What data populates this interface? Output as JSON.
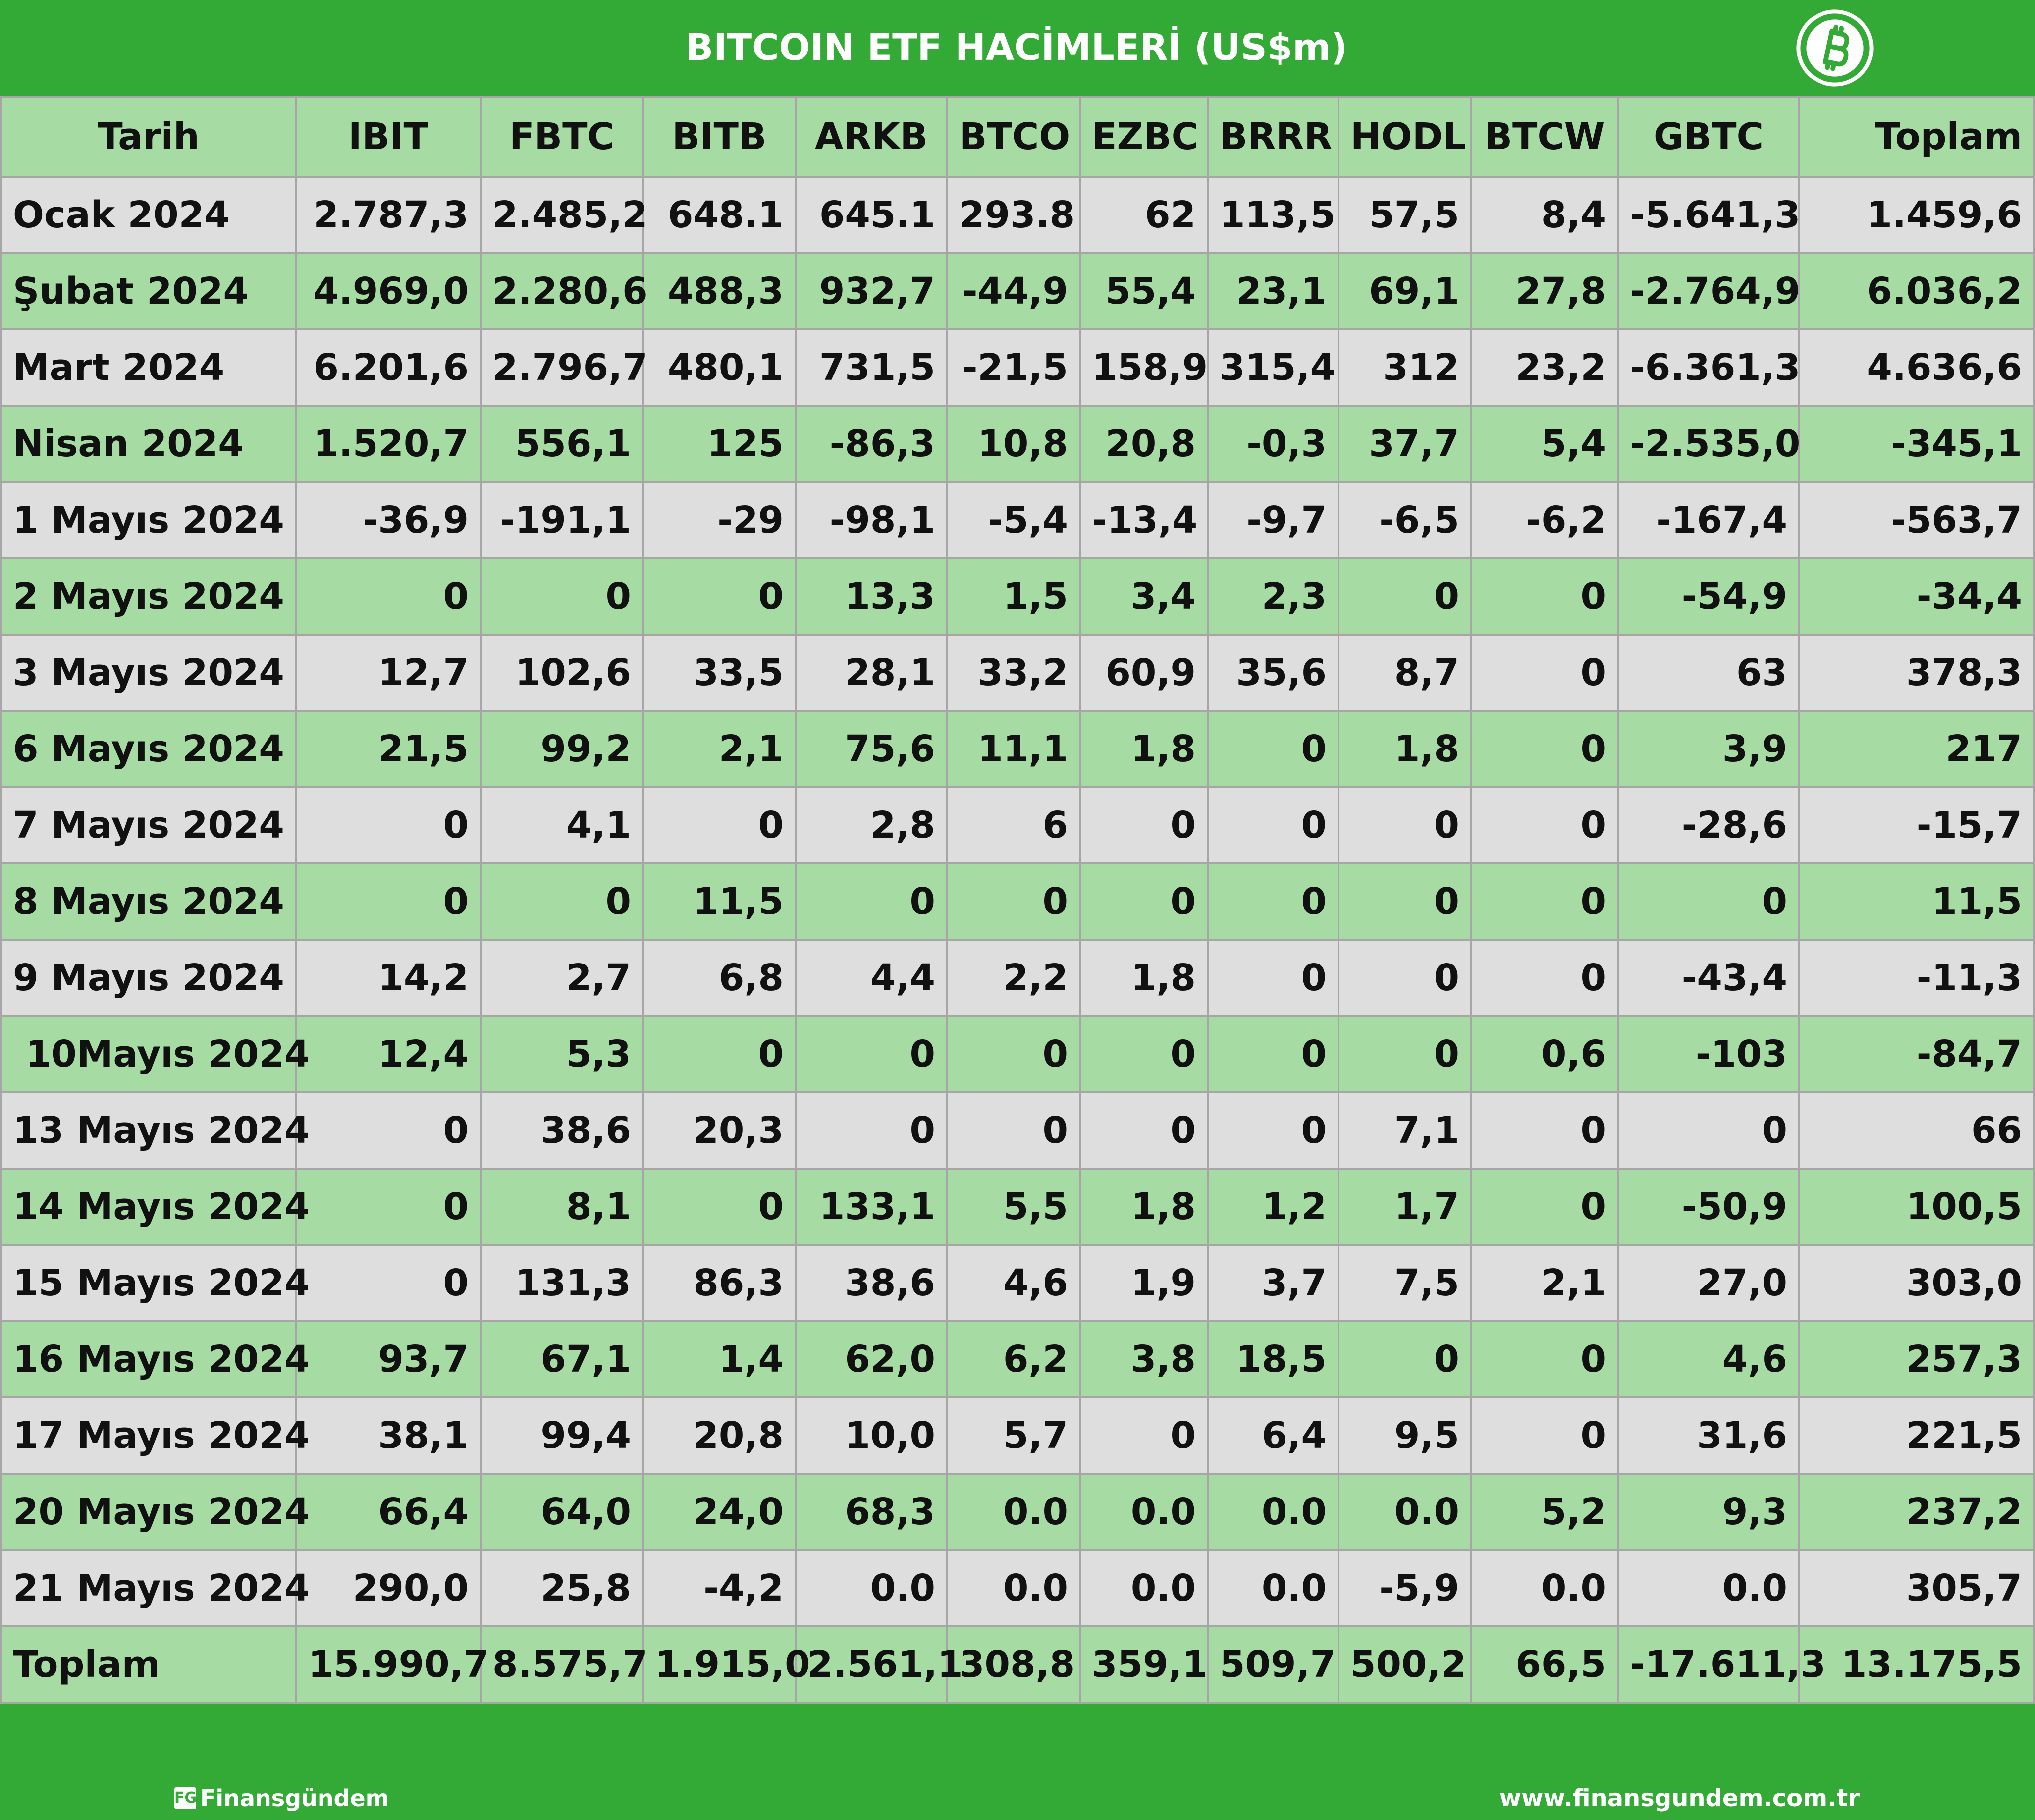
{
  "title": "BITCOIN ETF HACİMLERİ (US$m)",
  "logo_icon": "bitcoin-icon",
  "colors": {
    "header_green": "#33aa36",
    "row_green": "#a6dba3",
    "row_gray": "#dedede",
    "border_gray": "#a6a6a6"
  },
  "table": {
    "headers": [
      "Tarih",
      "IBIT",
      "FBTC",
      "BITB",
      "ARKB",
      "BTCO",
      "EZBC",
      "BRRR",
      "HODL",
      "BTCW",
      "GBTC",
      "Toplam"
    ],
    "rows": [
      [
        "Ocak 2024",
        "2.787,3",
        "2.485,2",
        "648.1",
        "645.1",
        "293.8",
        "62",
        "113,5",
        "57,5",
        "8,4",
        "-5.641,3",
        "1.459,6"
      ],
      [
        "Şubat 2024",
        "4.969,0",
        "2.280,6",
        "488,3",
        "932,7",
        "-44,9",
        "55,4",
        "23,1",
        "69,1",
        "27,8",
        "-2.764,9",
        "6.036,2"
      ],
      [
        "Mart 2024",
        "6.201,6",
        "2.796,7",
        "480,1",
        "731,5",
        "-21,5",
        "158,9",
        "315,4",
        "312",
        "23,2",
        "-6.361,3",
        "4.636,6"
      ],
      [
        "Nisan 2024",
        "1.520,7",
        "556,1",
        "125",
        "-86,3",
        "10,8",
        "20,8",
        "-0,3",
        "37,7",
        "5,4",
        "-2.535,0",
        "-345,1"
      ],
      [
        "1 Mayıs 2024",
        "-36,9",
        "-191,1",
        "-29",
        "-98,1",
        "-5,4",
        "-13,4",
        "-9,7",
        "-6,5",
        "-6,2",
        "-167,4",
        "-563,7"
      ],
      [
        "2 Mayıs 2024",
        "0",
        "0",
        "0",
        "13,3",
        "1,5",
        "3,4",
        "2,3",
        "0",
        "0",
        "-54,9",
        "-34,4"
      ],
      [
        "3 Mayıs 2024",
        "12,7",
        "102,6",
        "33,5",
        "28,1",
        "33,2",
        "60,9",
        "35,6",
        "8,7",
        "0",
        "63",
        "378,3"
      ],
      [
        "6 Mayıs 2024",
        "21,5",
        "99,2",
        "2,1",
        "75,6",
        "11,1",
        "1,8",
        "0",
        "1,8",
        "0",
        "3,9",
        "217"
      ],
      [
        "7 Mayıs 2024",
        "0",
        "4,1",
        "0",
        "2,8",
        "6",
        "0",
        "0",
        "0",
        "0",
        "-28,6",
        "-15,7"
      ],
      [
        "8 Mayıs 2024",
        "0",
        "0",
        "11,5",
        "0",
        "0",
        "0",
        "0",
        "0",
        "0",
        "0",
        "11,5"
      ],
      [
        "9 Mayıs 2024",
        "14,2",
        "2,7",
        "6,8",
        "4,4",
        "2,2",
        "1,8",
        "0",
        "0",
        "0",
        "-43,4",
        "-11,3"
      ],
      [
        " 10Mayıs 2024",
        "12,4",
        "5,3",
        "0",
        "0",
        "0",
        "0",
        "0",
        "0",
        "0,6",
        "-103",
        "-84,7"
      ],
      [
        "13 Mayıs 2024",
        "0",
        "38,6",
        "20,3",
        "0",
        "0",
        "0",
        "0",
        "7,1",
        "0",
        "0",
        "66"
      ],
      [
        "14 Mayıs 2024",
        "0",
        "8,1",
        "0",
        "133,1",
        "5,5",
        "1,8",
        "1,2",
        "1,7",
        "0",
        "-50,9",
        "100,5"
      ],
      [
        "15 Mayıs 2024",
        "0",
        "131,3",
        "86,3",
        "38,6",
        "4,6",
        "1,9",
        "3,7",
        "7,5",
        "2,1",
        "27,0",
        "303,0"
      ],
      [
        "16 Mayıs 2024",
        "93,7",
        "67,1",
        "1,4",
        "62,0",
        "6,2",
        "3,8",
        "18,5",
        "0",
        "0",
        "4,6",
        "257,3"
      ],
      [
        "17 Mayıs 2024",
        "38,1",
        "99,4",
        "20,8",
        "10,0",
        "5,7",
        "0",
        "6,4",
        "9,5",
        "0",
        "31,6",
        "221,5"
      ],
      [
        "20 Mayıs 2024",
        "66,4",
        "64,0",
        "24,0",
        "68,3",
        "0.0",
        "0.0",
        "0.0",
        "0.0",
        "5,2",
        "9,3",
        "237,2"
      ],
      [
        "21 Mayıs 2024",
        "290,0",
        "25,8",
        "-4,2",
        "0.0",
        "0.0",
        "0.0",
        "0.0",
        "-5,9",
        "0.0",
        "0.0",
        "305,7"
      ],
      [
        "Toplam",
        "15.990,7",
        "8.575,7",
        "1.915,0",
        "2.561,1",
        "308,8",
        "359,1",
        "509,7",
        "500,2",
        "66,5",
        "-17.611,3",
        "13.175,5"
      ]
    ]
  },
  "footer": {
    "brand_mark": "FG",
    "brand": "Finansgündem",
    "website": "www.finansgundem.com.tr"
  }
}
